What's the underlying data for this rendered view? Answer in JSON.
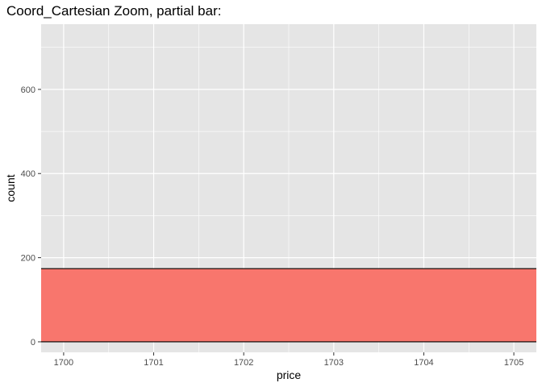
{
  "chart_data": {
    "type": "bar",
    "title": "Coord_Cartesian Zoom, partial bar:",
    "xlabel": "price",
    "ylabel": "count",
    "xlim": [
      1699.75,
      1705.25
    ],
    "ylim": [
      -25,
      755
    ],
    "x_ticks": [
      1700,
      1701,
      1702,
      1703,
      1704,
      1705
    ],
    "y_ticks": [
      0,
      200,
      400,
      600
    ],
    "grid": true,
    "legend": "none",
    "bars": [
      {
        "x_start": 1699.75,
        "x_end": 1705.25,
        "count": 174
      }
    ],
    "colors": {
      "panel": "#e5e5e5",
      "grid": "#ffffff",
      "bar_fill": "#f8766d",
      "bar_outline": "#000000",
      "tick_text": "#4d4d4d",
      "tick_mark": "#333333"
    }
  }
}
